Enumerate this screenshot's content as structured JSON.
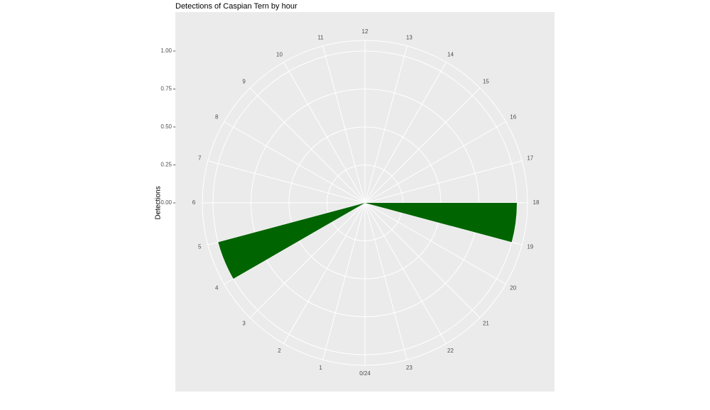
{
  "chart_data": {
    "type": "polar-histogram",
    "title": "Detections of Caspian Tern by hour",
    "y_label": "Detections",
    "bins": [
      0,
      1,
      2,
      3,
      4,
      5,
      6,
      7,
      8,
      9,
      10,
      11,
      12,
      13,
      14,
      15,
      16,
      17,
      18,
      19,
      20,
      21,
      22,
      23,
      24
    ],
    "values": [
      0,
      0,
      0,
      0,
      1,
      0,
      0,
      0,
      0,
      0,
      0,
      0,
      0,
      0,
      0,
      0,
      0,
      0,
      1,
      0,
      0,
      0,
      0,
      0,
      0
    ],
    "color": "#006400",
    "xlim": [
      0,
      24
    ],
    "xticks": [
      {
        "value": 0,
        "label": "0/24"
      },
      1,
      2,
      3,
      4,
      5,
      6,
      7,
      8,
      9,
      10,
      11,
      12,
      13,
      14,
      15,
      16,
      17,
      18,
      19,
      20,
      21,
      22,
      23
    ],
    "ylim": [
      0,
      1
    ],
    "yticks": [
      {
        "value": 0,
        "label": "0.00"
      },
      0.25,
      {
        "value": 0.5,
        "label": "0.50"
      },
      0.75,
      {
        "value": 1,
        "label": "1.00"
      }
    ],
    "grid": true
  }
}
